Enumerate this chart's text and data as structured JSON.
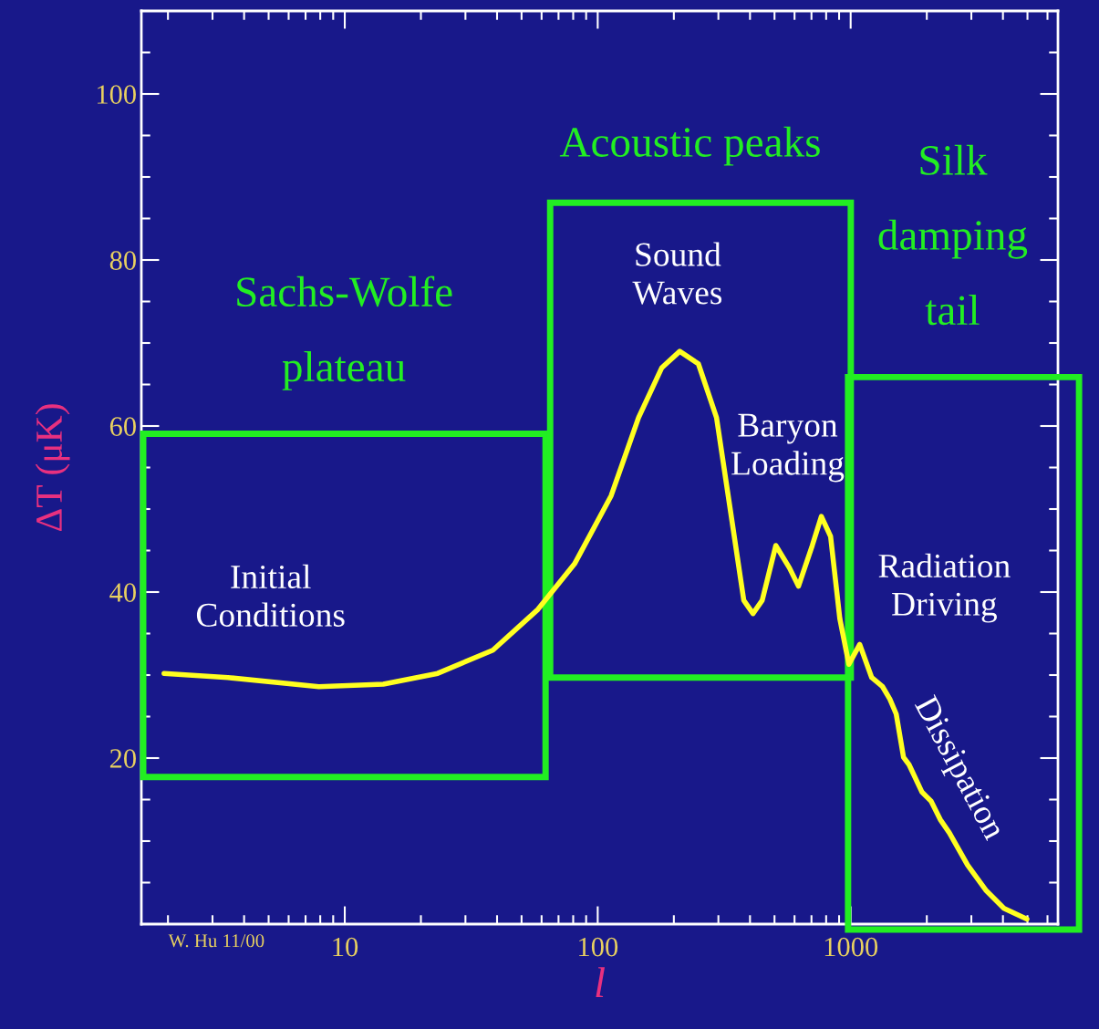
{
  "chart_data": {
    "type": "line",
    "xlabel": "l",
    "ylabel": "ΔT (μK)",
    "log": "x",
    "xlim": [
      1.57,
      6600
    ],
    "ylim": [
      0,
      110
    ],
    "xticks": [
      10,
      100,
      1000
    ],
    "yticks": [
      20,
      40,
      60,
      80,
      100
    ],
    "x": [
      1.93,
      3.45,
      7.9,
      14.2,
      23.3,
      38.5,
      58,
      81,
      113,
      145,
      179,
      211,
      250,
      295,
      334,
      378,
      411,
      447,
      506,
      573,
      622,
      705,
      766,
      833,
      906,
      984,
      1086,
      1211,
      1337,
      1429,
      1514,
      1618,
      1702,
      1914,
      2080,
      2260,
      2455,
      2900,
      3420,
      4037,
      4975
    ],
    "series": [
      {
        "color": "#ffff20",
        "values": [
          30.2,
          29.7,
          28.6,
          28.9,
          30.2,
          33,
          37.9,
          43.4,
          51.6,
          61,
          67,
          69,
          67.5,
          61,
          50,
          39,
          37.4,
          39,
          45.6,
          42.9,
          40.7,
          45.6,
          49.1,
          46.7,
          36.8,
          31.3,
          33.7,
          29.7,
          28.6,
          27.1,
          25.3,
          20.1,
          19.2,
          15.9,
          14.8,
          12.6,
          11,
          7.1,
          4.1,
          1.9,
          0.6
        ]
      }
    ],
    "annotations": [
      "Sachs-Wolfe\nplateau",
      "Acoustic peaks",
      "Silk\ndamping\ntail",
      "Initial\nConditions",
      "Sound\nWaves",
      "Baryon\nLoading",
      "Radiation\nDriving",
      "Dissipation",
      "W. Hu 11/00"
    ]
  }
}
